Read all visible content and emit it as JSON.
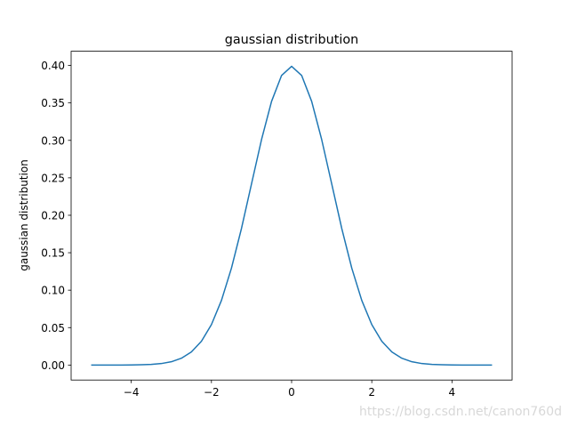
{
  "chart_data": {
    "type": "line",
    "title": "gaussian distribution",
    "ylabel": "gaussian distribution",
    "watermark": "https://blog.csdn.net/canon760d",
    "x": [
      -5,
      -4.75,
      -4.5,
      -4.25,
      -4,
      -3.75,
      -3.5,
      -3.25,
      -3,
      -2.75,
      -2.5,
      -2.25,
      -2,
      -1.75,
      -1.5,
      -1.25,
      -1,
      -0.75,
      -0.5,
      -0.25,
      0,
      0.25,
      0.5,
      0.75,
      1,
      1.25,
      1.5,
      1.75,
      2,
      2.25,
      2.5,
      2.75,
      3,
      3.25,
      3.5,
      3.75,
      4,
      4.25,
      4.5,
      4.75,
      5
    ],
    "series": [
      {
        "name": "gaussian",
        "color": "#1f77b4",
        "values": [
          0,
          0,
          0,
          0,
          0.0001,
          0.0004,
          0.0009,
          0.002,
          0.0044,
          0.0091,
          0.0175,
          0.0317,
          0.054,
          0.0863,
          0.1295,
          0.1826,
          0.242,
          0.3011,
          0.3521,
          0.3867,
          0.3989,
          0.3867,
          0.3521,
          0.3011,
          0.242,
          0.1826,
          0.1295,
          0.0863,
          0.054,
          0.0317,
          0.0175,
          0.0091,
          0.0044,
          0.002,
          0.0009,
          0.0004,
          0.0001,
          0,
          0,
          0,
          0
        ]
      }
    ],
    "xlim": [
      -5.5,
      5.5
    ],
    "ylim": [
      -0.02,
      0.419
    ],
    "xticks": [
      {
        "value": -4,
        "label": "−4"
      },
      {
        "value": -2,
        "label": "−2"
      },
      0,
      2,
      4
    ],
    "yticks": [
      {
        "value": 0,
        "label": "0.00"
      },
      {
        "value": 0.05,
        "label": "0.05"
      },
      {
        "value": 0.1,
        "label": "0.10"
      },
      {
        "value": 0.15,
        "label": "0.15"
      },
      {
        "value": 0.2,
        "label": "0.20"
      },
      {
        "value": 0.25,
        "label": "0.25"
      },
      {
        "value": 0.3,
        "label": "0.30"
      },
      {
        "value": 0.35,
        "label": "0.35"
      },
      {
        "value": 0.4,
        "label": "0.40"
      }
    ],
    "grid": false
  }
}
